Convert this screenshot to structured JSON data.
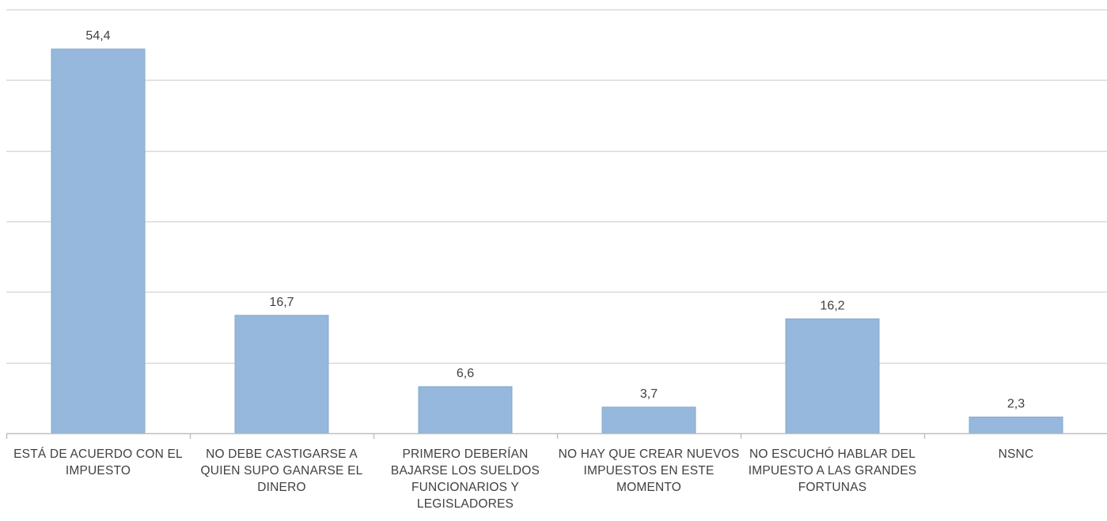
{
  "chart_data": {
    "type": "bar",
    "categories": [
      "ESTÁ DE ACUERDO CON EL IMPUESTO",
      "NO DEBE CASTIGARSE A QUIEN SUPO GANARSE EL DINERO",
      "PRIMERO DEBERÍAN BAJARSE LOS SUELDOS FUNCIONARIOS Y LEGISLADORES",
      "NO HAY QUE CREAR NUEVOS IMPUESTOS EN ESTE MOMENTO",
      "NO ESCUCHÓ HABLAR DEL IMPUESTO A LAS GRANDES FORTUNAS",
      "NSNC"
    ],
    "values": [
      54.4,
      16.7,
      6.6,
      3.7,
      16.2,
      2.3
    ],
    "value_labels": [
      "54,4",
      "16,7",
      "6,6",
      "3,7",
      "16,2",
      "2,3"
    ],
    "title": "",
    "xlabel": "",
    "ylabel": "",
    "ylim": [
      0,
      60
    ],
    "grid": true,
    "legend": "none",
    "bar_color": "#95b8dc",
    "gridline_color": "#d9d9d9"
  }
}
